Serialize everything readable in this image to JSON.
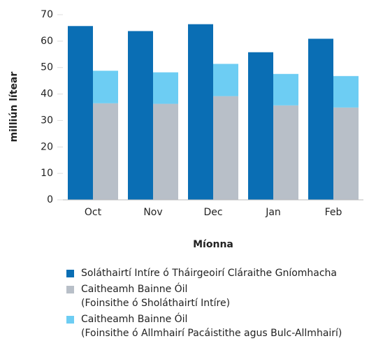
{
  "chart_data": {
    "type": "bar",
    "categories": [
      "Oct",
      "Nov",
      "Dec",
      "Jan",
      "Feb"
    ],
    "series": [
      {
        "name": "Soláthairtí Intíre ó Tháirgeoirí Cláraithe Gníomhacha",
        "color": "#0a6eb4",
        "stack": "a",
        "values": [
          65.7,
          63.8,
          66.4,
          55.8,
          60.9
        ]
      },
      {
        "name": "Caitheamh Bainne Óil\n(Foinsithe ó Sholáthairtí Intíre)",
        "color": "#b8bfc8",
        "stack": "b",
        "values": [
          36.5,
          36.3,
          39.2,
          35.7,
          34.9
        ]
      },
      {
        "name": "Caitheamh Bainne Óil\n(Foinsithe ó Allmhairí Pacáistithe agus Bulc-Allmhairí)",
        "color": "#6dcdf3",
        "stack": "b",
        "values": [
          12.3,
          11.9,
          12.2,
          11.9,
          11.9
        ]
      }
    ],
    "xlabel": "Míonna",
    "ylabel": "milliún lítear",
    "ylim": [
      0,
      70
    ],
    "yticks": [
      0,
      10,
      20,
      30,
      40,
      50,
      60,
      70
    ],
    "grid": false
  }
}
